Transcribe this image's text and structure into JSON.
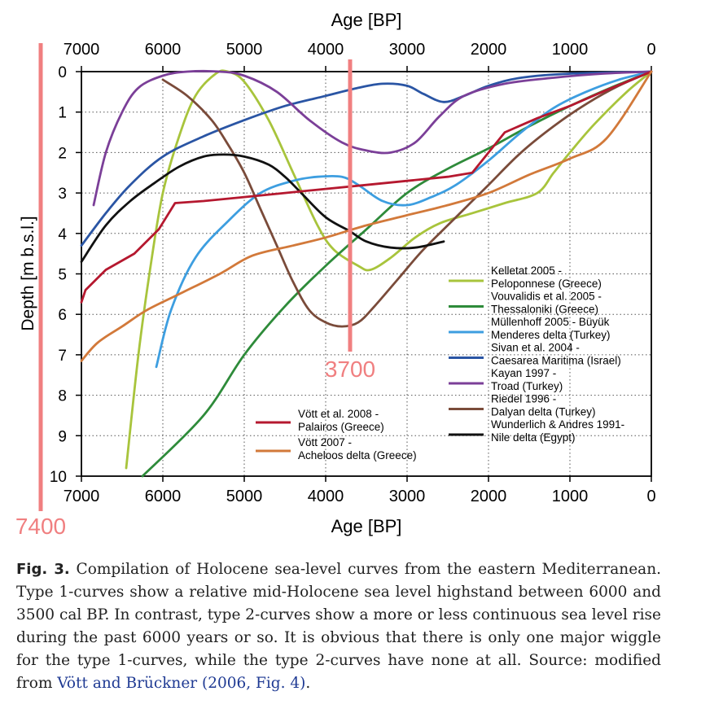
{
  "chart_data": {
    "type": "line",
    "xlabel": "Age [BP]",
    "ylabel": "Depth [m b.s.l.]",
    "xlim": [
      7000,
      0
    ],
    "ylim": [
      0,
      10
    ],
    "x_ticks": [
      7000,
      6000,
      5000,
      4000,
      3000,
      2000,
      1000,
      0
    ],
    "y_ticks": [
      0,
      1,
      2,
      3,
      4,
      5,
      6,
      7,
      8,
      9,
      10
    ],
    "grid": "dotted",
    "legend_position": "bottom-right",
    "series": [
      {
        "name_line1": "Kelletat 2005 -",
        "name_line2": "Peloponnese (Greece)",
        "color": "#a8c43c",
        "points": [
          [
            6450,
            9.8
          ],
          [
            6300,
            7
          ],
          [
            6150,
            4.8
          ],
          [
            6000,
            3.0
          ],
          [
            5800,
            1.6
          ],
          [
            5600,
            0.6
          ],
          [
            5350,
            0.05
          ],
          [
            5200,
            0.0
          ],
          [
            5000,
            0.25
          ],
          [
            4700,
            1.2
          ],
          [
            4400,
            2.5
          ],
          [
            4100,
            3.8
          ],
          [
            3900,
            4.4
          ],
          [
            3600,
            4.8
          ],
          [
            3450,
            4.9
          ],
          [
            3200,
            4.6
          ],
          [
            2900,
            4.1
          ],
          [
            2600,
            3.75
          ],
          [
            2200,
            3.5
          ],
          [
            1800,
            3.25
          ],
          [
            1400,
            3.0
          ],
          [
            1200,
            2.5
          ],
          [
            1000,
            2.0
          ],
          [
            700,
            1.3
          ],
          [
            300,
            0.5
          ],
          [
            0,
            0.0
          ]
        ]
      },
      {
        "name_line1": "Vouvalidis et al. 2005 -",
        "name_line2": "Thessaloniki (Greece)",
        "color": "#2e8b3a",
        "points": [
          [
            6250,
            10.0
          ],
          [
            5500,
            8.5
          ],
          [
            5000,
            7.0
          ],
          [
            4500,
            5.8
          ],
          [
            4000,
            4.8
          ],
          [
            3500,
            3.9
          ],
          [
            3000,
            3.0
          ],
          [
            2500,
            2.4
          ],
          [
            2000,
            1.9
          ],
          [
            1500,
            1.35
          ],
          [
            1000,
            0.85
          ],
          [
            500,
            0.4
          ],
          [
            0,
            0.0
          ]
        ]
      },
      {
        "name_line1": "Müllenhoff 2005 - Büyük",
        "name_line2": "Menderes delta (Turkey)",
        "color": "#3d9ee0",
        "points": [
          [
            6080,
            7.3
          ],
          [
            5900,
            5.9
          ],
          [
            5600,
            4.6
          ],
          [
            5200,
            3.7
          ],
          [
            4800,
            3.0
          ],
          [
            4400,
            2.7
          ],
          [
            4100,
            2.6
          ],
          [
            3800,
            2.6
          ],
          [
            3600,
            2.8
          ],
          [
            3300,
            3.2
          ],
          [
            3000,
            3.3
          ],
          [
            2700,
            3.1
          ],
          [
            2400,
            2.8
          ],
          [
            2000,
            2.2
          ],
          [
            1600,
            1.5
          ],
          [
            1200,
            0.9
          ],
          [
            800,
            0.5
          ],
          [
            400,
            0.2
          ],
          [
            0,
            0.0
          ]
        ]
      },
      {
        "name_line1": "Sivan et al. 2004 -",
        "name_line2": "Caesarea Maritima (Israel)",
        "color": "#2a55a4",
        "points": [
          [
            7000,
            4.3
          ],
          [
            6700,
            3.5
          ],
          [
            6400,
            2.8
          ],
          [
            6000,
            2.1
          ],
          [
            5500,
            1.6
          ],
          [
            5000,
            1.2
          ],
          [
            4500,
            0.85
          ],
          [
            4000,
            0.6
          ],
          [
            3600,
            0.4
          ],
          [
            3300,
            0.3
          ],
          [
            3000,
            0.35
          ],
          [
            2800,
            0.55
          ],
          [
            2550,
            0.75
          ],
          [
            2300,
            0.6
          ],
          [
            2000,
            0.35
          ],
          [
            1600,
            0.15
          ],
          [
            1000,
            0.05
          ],
          [
            0,
            0.0
          ]
        ]
      },
      {
        "name_line1": "Kayan 1997 -",
        "name_line2": "Troad (Turkey)",
        "color": "#7b3f98",
        "points": [
          [
            6850,
            3.3
          ],
          [
            6700,
            2.0
          ],
          [
            6500,
            1.0
          ],
          [
            6300,
            0.4
          ],
          [
            6000,
            0.1
          ],
          [
            5700,
            0.0
          ],
          [
            5300,
            0.0
          ],
          [
            5000,
            0.1
          ],
          [
            4600,
            0.5
          ],
          [
            4200,
            1.2
          ],
          [
            3800,
            1.75
          ],
          [
            3500,
            1.95
          ],
          [
            3200,
            2.0
          ],
          [
            2900,
            1.75
          ],
          [
            2600,
            1.1
          ],
          [
            2300,
            0.6
          ],
          [
            1800,
            0.3
          ],
          [
            1200,
            0.15
          ],
          [
            600,
            0.05
          ],
          [
            0,
            0.0
          ]
        ]
      },
      {
        "name_line1": "Riedel 1996 -",
        "name_line2": "Dalyan delta (Turkey)",
        "color": "#7a4b3a",
        "points": [
          [
            6000,
            0.2
          ],
          [
            5700,
            0.6
          ],
          [
            5400,
            1.2
          ],
          [
            5200,
            1.8
          ],
          [
            5000,
            2.5
          ],
          [
            4800,
            3.4
          ],
          [
            4600,
            4.3
          ],
          [
            4400,
            5.2
          ],
          [
            4200,
            5.9
          ],
          [
            4000,
            6.2
          ],
          [
            3800,
            6.3
          ],
          [
            3600,
            6.2
          ],
          [
            3400,
            5.8
          ],
          [
            3100,
            5.1
          ],
          [
            2800,
            4.4
          ],
          [
            2400,
            3.6
          ],
          [
            2000,
            2.8
          ],
          [
            1600,
            2.0
          ],
          [
            1200,
            1.35
          ],
          [
            800,
            0.8
          ],
          [
            400,
            0.35
          ],
          [
            0,
            0.0
          ]
        ]
      },
      {
        "name_line1": "Wunderlich & Andres 1991-",
        "name_line2": "Nile delta (Egypt)",
        "color": "#111111",
        "points": [
          [
            7000,
            4.7
          ],
          [
            6700,
            3.8
          ],
          [
            6400,
            3.2
          ],
          [
            6100,
            2.75
          ],
          [
            5800,
            2.35
          ],
          [
            5500,
            2.1
          ],
          [
            5250,
            2.05
          ],
          [
            5000,
            2.1
          ],
          [
            4700,
            2.3
          ],
          [
            4500,
            2.6
          ],
          [
            4300,
            3.0
          ],
          [
            4000,
            3.6
          ],
          [
            3700,
            3.95
          ],
          [
            3500,
            4.2
          ],
          [
            3200,
            4.35
          ],
          [
            2900,
            4.35
          ],
          [
            2550,
            4.2
          ]
        ]
      },
      {
        "name_line1": "Vött et al. 2008 -",
        "name_line2": "Palairos (Greece)",
        "color": "#b5182f",
        "points": [
          [
            7000,
            5.7
          ],
          [
            6950,
            5.4
          ],
          [
            6700,
            4.9
          ],
          [
            6350,
            4.5
          ],
          [
            6050,
            3.9
          ],
          [
            5850,
            3.25
          ],
          [
            5500,
            3.2
          ],
          [
            5000,
            3.1
          ],
          [
            4500,
            3.0
          ],
          [
            4000,
            2.9
          ],
          [
            3500,
            2.8
          ],
          [
            3000,
            2.7
          ],
          [
            2500,
            2.6
          ],
          [
            2200,
            2.5
          ],
          [
            1800,
            1.5
          ],
          [
            1400,
            1.15
          ],
          [
            1000,
            0.85
          ],
          [
            600,
            0.5
          ],
          [
            300,
            0.25
          ],
          [
            0,
            0.0
          ]
        ]
      },
      {
        "name_line1": "Vött 2007 -",
        "name_line2": "Acheloos delta (Greece)",
        "color": "#d2793a",
        "points": [
          [
            7000,
            7.15
          ],
          [
            6800,
            6.7
          ],
          [
            6500,
            6.3
          ],
          [
            6200,
            5.9
          ],
          [
            5800,
            5.5
          ],
          [
            5300,
            5.0
          ],
          [
            4900,
            4.55
          ],
          [
            4400,
            4.3
          ],
          [
            4000,
            4.1
          ],
          [
            3500,
            3.8
          ],
          [
            3000,
            3.55
          ],
          [
            2500,
            3.3
          ],
          [
            2000,
            3.0
          ],
          [
            1500,
            2.55
          ],
          [
            1000,
            2.15
          ],
          [
            550,
            1.65
          ],
          [
            0,
            0.0
          ]
        ]
      }
    ],
    "annotations": [
      {
        "text": "3700",
        "x": 3700,
        "color": "#f07f80"
      },
      {
        "text": "7400",
        "x": 7400,
        "color": "#f07f80"
      }
    ]
  },
  "caption": {
    "label": "Fig. 3.",
    "text": " Compilation of Holocene sea-level curves from the eastern Mediterranean. Type 1-curves show a relative mid-Holocene sea level highstand between 6000 and 3500 cal BP. In contrast, type 2-curves show a more or less continuous sea level rise during the past 6000 years or so. It is obvious that there is only one major wiggle for the type 1-curves, while the type 2-curves have none at all. Source: modified from ",
    "source_link": "Vött and Brückner (2006, Fig. 4)",
    "end": "."
  }
}
